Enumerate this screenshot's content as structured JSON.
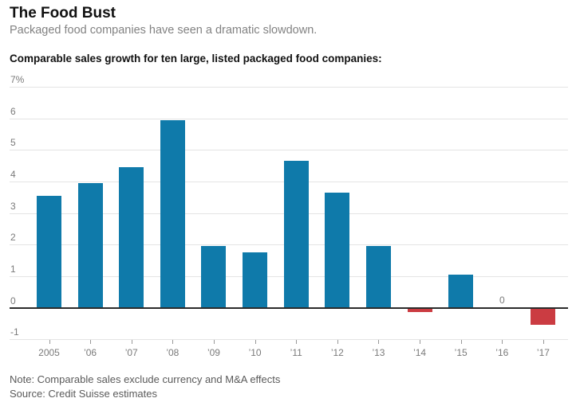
{
  "header": {
    "title": "The Food Bust",
    "subtitle": "Packaged food companies have seen a dramatic slowdown.",
    "heading": "Comparable sales growth for ten large, listed packaged food companies:"
  },
  "chart_data": {
    "type": "bar",
    "title": "Comparable sales growth for ten large, listed packaged food companies:",
    "categories": [
      "2005",
      "’06",
      "’07",
      "’08",
      "’09",
      "’10",
      "’11",
      "’12",
      "’13",
      "’14",
      "’15",
      "’16",
      "’17"
    ],
    "values": [
      3.55,
      3.95,
      4.45,
      5.95,
      1.95,
      1.75,
      4.65,
      3.65,
      1.95,
      -0.1,
      1.05,
      0,
      -0.5
    ],
    "xlabel": "",
    "ylabel": "",
    "ylim": [
      -1,
      7
    ],
    "y_ticks": [
      7,
      6,
      5,
      4,
      3,
      2,
      1,
      0,
      -1
    ],
    "y_tick_labels": [
      "7%",
      "6",
      "5",
      "4",
      "3",
      "2",
      "1",
      "0",
      "-1"
    ],
    "zero_value_label": {
      "category": "’16",
      "text": "0"
    },
    "grid": "horizontal-only",
    "legend": "none",
    "colors": {
      "positive_bar": "#0F7AAA",
      "negative_bar": "#CB3C42",
      "zero_line": "#2B2B2B",
      "gridline": "#E4E4E4",
      "axis_text": "#7A7A7A"
    }
  },
  "footer": {
    "note": "Note: Comparable sales exclude currency and M&A effects",
    "source": "Source: Credit Suisse estimates"
  }
}
